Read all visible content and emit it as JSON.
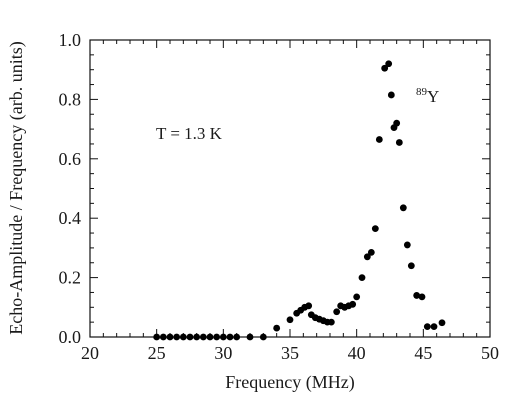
{
  "chart_data": {
    "type": "scatter",
    "xlabel": "Frequency (MHz)",
    "ylabel": "Echo-Amplitude / Frequency (arb. units)",
    "xlim": [
      20,
      50
    ],
    "ylim": [
      0,
      1.0
    ],
    "x_major_ticks": [
      20,
      25,
      30,
      35,
      40,
      45,
      50
    ],
    "x_tick_labels": [
      "20",
      "25",
      "30",
      "35",
      "40",
      "45",
      "50"
    ],
    "y_major_ticks": [
      0,
      0.2,
      0.4,
      0.6,
      0.8,
      1.0
    ],
    "y_tick_labels": [
      "0.0",
      "0.2",
      "0.4",
      "0.6",
      "0.8",
      "1.0"
    ],
    "x_minor_step": 1,
    "y_minor_step": 0.05,
    "grid": false,
    "annotations": {
      "temperature": "T = 1.3 K",
      "nucleus_mass": "89",
      "nucleus_symbol": "Y"
    },
    "series": [
      {
        "marker": "filled-circle",
        "color": "#000000",
        "points": [
          [
            25.0,
            0.0
          ],
          [
            25.5,
            0.0
          ],
          [
            26.0,
            0.0
          ],
          [
            26.5,
            0.0
          ],
          [
            27.0,
            0.0
          ],
          [
            27.5,
            0.0
          ],
          [
            28.0,
            0.0
          ],
          [
            28.5,
            0.0
          ],
          [
            29.0,
            0.0
          ],
          [
            29.5,
            0.0
          ],
          [
            30.0,
            0.0
          ],
          [
            30.5,
            0.0
          ],
          [
            31.0,
            0.0
          ],
          [
            32.0,
            0.0
          ],
          [
            33.0,
            0.0
          ],
          [
            34.0,
            0.03
          ],
          [
            35.0,
            0.058
          ],
          [
            35.5,
            0.08
          ],
          [
            35.8,
            0.09
          ],
          [
            36.1,
            0.1
          ],
          [
            36.4,
            0.105
          ],
          [
            36.6,
            0.075
          ],
          [
            36.9,
            0.065
          ],
          [
            37.2,
            0.06
          ],
          [
            37.5,
            0.055
          ],
          [
            37.8,
            0.05
          ],
          [
            38.1,
            0.05
          ],
          [
            38.5,
            0.085
          ],
          [
            38.8,
            0.105
          ],
          [
            39.1,
            0.1
          ],
          [
            39.4,
            0.105
          ],
          [
            39.7,
            0.11
          ],
          [
            40.0,
            0.135
          ],
          [
            40.4,
            0.2
          ],
          [
            40.8,
            0.27
          ],
          [
            41.1,
            0.285
          ],
          [
            41.4,
            0.365
          ],
          [
            41.7,
            0.665
          ],
          [
            42.1,
            0.905
          ],
          [
            42.4,
            0.92
          ],
          [
            42.6,
            0.815
          ],
          [
            42.8,
            0.705
          ],
          [
            43.0,
            0.72
          ],
          [
            43.2,
            0.655
          ],
          [
            43.5,
            0.435
          ],
          [
            43.8,
            0.31
          ],
          [
            44.1,
            0.24
          ],
          [
            44.5,
            0.14
          ],
          [
            44.9,
            0.135
          ],
          [
            45.3,
            0.035
          ],
          [
            45.8,
            0.035
          ],
          [
            46.4,
            0.048
          ]
        ]
      }
    ]
  }
}
